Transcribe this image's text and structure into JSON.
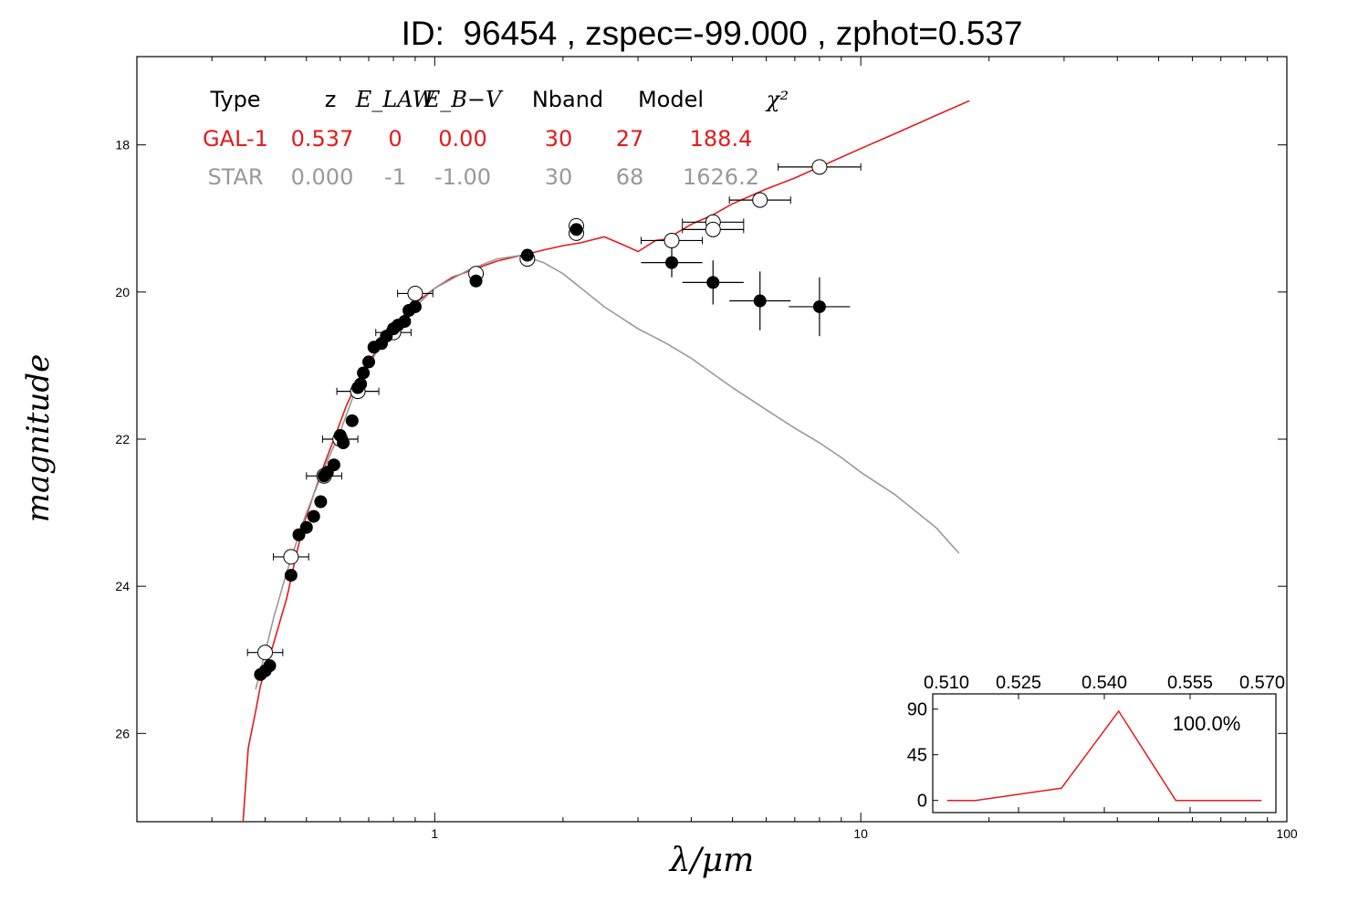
{
  "title": "ID:  96454 , zspec=-99.000 , zphot=0.537",
  "colors": {
    "galaxy": "#e41a1c",
    "star": "#999999",
    "axis": "#000000"
  },
  "chart_data": [
    {
      "type": "scatter",
      "title": "ID:  96454 , zspec=-99.000 , zphot=0.537",
      "xlabel": "λ/μm",
      "ylabel": "magnitude",
      "xscale": "log",
      "xlim": [
        0.2,
        100
      ],
      "ylim": [
        27.2,
        16.8
      ],
      "y_inverted": true,
      "x_tick_labels": [
        {
          "x": 1,
          "label": "1"
        },
        {
          "x": 10,
          "label": "10"
        },
        {
          "x": 100,
          "label": "100"
        }
      ],
      "y_tick_labels": [
        {
          "y": 18,
          "label": "18"
        },
        {
          "y": 20,
          "label": "20"
        },
        {
          "y": 22,
          "label": "22"
        },
        {
          "y": 24,
          "label": "24"
        },
        {
          "y": 26,
          "label": "26"
        }
      ],
      "fit_table": {
        "header": [
          "Type",
          "z",
          "E_LAW",
          "E_B−V",
          "Nband",
          "Model",
          "χ²"
        ],
        "rows": [
          {
            "type": "GAL-1",
            "z": "0.537",
            "elaw": "0",
            "ebv": "0.00",
            "nband": "30",
            "model": "27",
            "chi2": "188.4",
            "color": "#e41a1c"
          },
          {
            "type": "STAR",
            "z": "0.000",
            "elaw": "-1",
            "ebv": "-1.00",
            "nband": "30",
            "model": "68",
            "chi2": "1626.2",
            "color": "#999999"
          }
        ]
      },
      "series": [
        {
          "name": "GAL-1",
          "kind": "line",
          "color": "#e41a1c",
          "x": [
            0.355,
            0.365,
            0.38,
            0.39,
            0.4,
            0.42,
            0.45,
            0.47,
            0.49,
            0.52,
            0.55,
            0.58,
            0.62,
            0.66,
            0.7,
            0.75,
            0.8,
            0.85,
            0.9,
            0.95,
            1.0,
            1.1,
            1.25,
            1.4,
            1.6,
            1.8,
            2.0,
            2.2,
            2.5,
            2.8,
            3.0,
            3.3,
            3.5,
            4.0,
            4.5,
            5.0,
            6.0,
            7.0,
            8.0,
            10.0,
            12.0,
            15.0,
            18.0
          ],
          "y": [
            27.2,
            26.2,
            25.7,
            25.35,
            25.15,
            24.75,
            24.15,
            23.65,
            23.2,
            22.75,
            22.35,
            22.0,
            21.55,
            21.2,
            20.95,
            20.7,
            20.5,
            20.3,
            20.15,
            20.05,
            19.95,
            19.8,
            19.68,
            19.58,
            19.5,
            19.43,
            19.37,
            19.33,
            19.25,
            19.37,
            19.45,
            19.3,
            19.28,
            19.08,
            18.95,
            18.8,
            18.6,
            18.45,
            18.3,
            18.05,
            17.85,
            17.6,
            17.4
          ]
        },
        {
          "name": "STAR",
          "kind": "line",
          "color": "#999999",
          "x": [
            0.38,
            0.4,
            0.42,
            0.45,
            0.48,
            0.5,
            0.55,
            0.6,
            0.65,
            0.7,
            0.75,
            0.8,
            0.9,
            1.0,
            1.2,
            1.4,
            1.6,
            1.8,
            2.0,
            2.5,
            3.0,
            3.5,
            4.0,
            5.0,
            6.0,
            7.0,
            8.0,
            9.0,
            10.0,
            12.0,
            15.0,
            17.0
          ],
          "y": [
            25.4,
            24.9,
            24.4,
            23.8,
            23.3,
            23.0,
            22.4,
            21.9,
            21.35,
            21.0,
            20.7,
            20.45,
            20.2,
            19.95,
            19.7,
            19.55,
            19.5,
            19.6,
            19.75,
            20.2,
            20.5,
            20.7,
            20.9,
            21.3,
            21.6,
            21.85,
            22.05,
            22.25,
            22.45,
            22.75,
            23.2,
            23.55
          ]
        },
        {
          "name": "observed photometry",
          "kind": "points",
          "marker": "filled-circle",
          "color": "#000000",
          "x": [
            0.39,
            0.4,
            0.41,
            0.46,
            0.48,
            0.5,
            0.52,
            0.54,
            0.55,
            0.56,
            0.58,
            0.6,
            0.61,
            0.64,
            0.66,
            0.67,
            0.68,
            0.7,
            0.72,
            0.75,
            0.77,
            0.8,
            0.82,
            0.85,
            0.87,
            0.9,
            1.25,
            1.65,
            2.15,
            3.6,
            4.5,
            5.8,
            8.0
          ],
          "y": [
            25.2,
            25.15,
            25.08,
            23.85,
            23.3,
            23.2,
            23.05,
            22.85,
            22.5,
            22.45,
            22.35,
            21.95,
            22.05,
            21.75,
            21.3,
            21.25,
            21.1,
            20.95,
            20.75,
            20.7,
            20.6,
            20.5,
            20.45,
            20.4,
            20.25,
            20.2,
            19.85,
            19.5,
            19.15,
            19.6,
            19.87,
            20.12,
            20.2
          ],
          "yerr": [
            0.05,
            0.05,
            0.05,
            0.05,
            0.05,
            0.05,
            0.05,
            0.05,
            0.05,
            0.05,
            0.05,
            0.05,
            0.05,
            0.05,
            0.05,
            0.05,
            0.05,
            0.05,
            0.05,
            0.05,
            0.05,
            0.05,
            0.05,
            0.05,
            0.05,
            0.05,
            0.05,
            0.05,
            0.05,
            0.2,
            0.3,
            0.4,
            0.4
          ]
        },
        {
          "name": "model photometry",
          "kind": "points",
          "marker": "open-circle",
          "color": "#000000",
          "x": [
            0.4,
            0.46,
            0.55,
            0.6,
            0.66,
            0.8,
            0.9,
            1.25,
            1.65,
            2.15,
            2.15,
            3.6,
            4.5,
            4.5,
            5.8,
            8.0
          ],
          "y": [
            24.9,
            23.6,
            22.5,
            22.0,
            21.35,
            20.55,
            20.02,
            19.75,
            19.55,
            19.1,
            19.2,
            19.3,
            19.05,
            19.15,
            18.75,
            18.3
          ],
          "xerr_factor": [
            1.1,
            1.1,
            1.1,
            1.1,
            1.12,
            1.1,
            1.1,
            1.0,
            1.0,
            1.0,
            1.0,
            1.18,
            1.18,
            1.18,
            1.18,
            1.25
          ]
        }
      ]
    },
    {
      "type": "line",
      "name": "inset",
      "x": [
        0.5125,
        0.5175,
        0.5325,
        0.5425,
        0.5525,
        0.5675
      ],
      "y": [
        0,
        0,
        12,
        88,
        0,
        0
      ],
      "xlim": [
        0.51,
        0.57
      ],
      "ylim": [
        -12,
        105
      ],
      "x_tick_labels": [
        "0.510",
        "0.525",
        "0.540",
        "0.555",
        "0.570"
      ],
      "x_tick_values": [
        0.51,
        0.525,
        0.54,
        0.555,
        0.57
      ],
      "y_tick_labels": [
        "0",
        "45",
        "90"
      ],
      "y_tick_values": [
        0,
        45,
        90
      ],
      "annotation": "100.0%",
      "color": "#e41a1c"
    }
  ]
}
